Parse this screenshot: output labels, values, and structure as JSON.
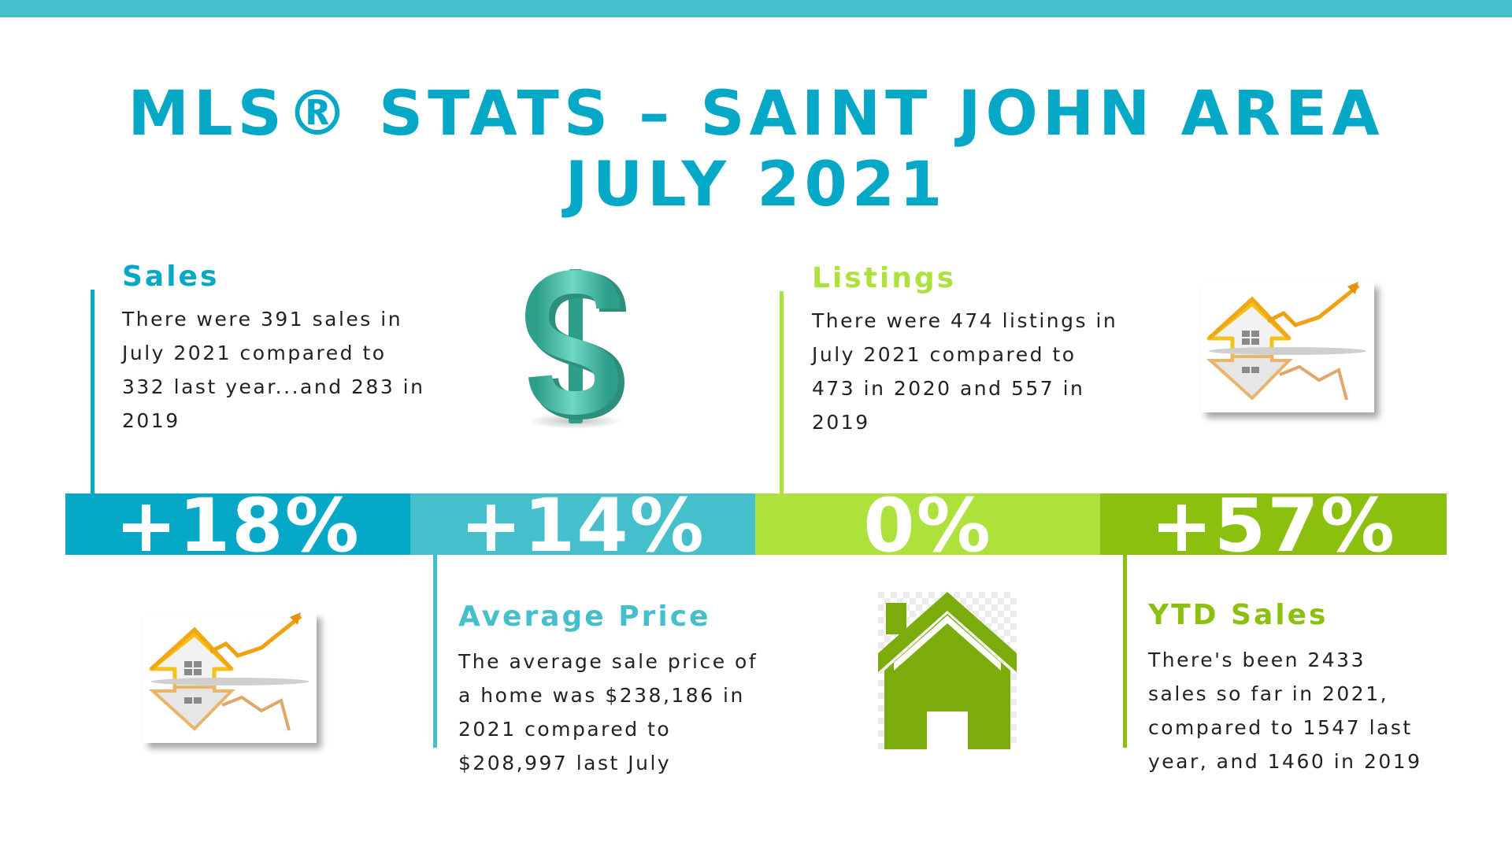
{
  "header": {
    "line1": "MLS® STATS – SAINT JOHN AREA",
    "line2": "JULY  2021"
  },
  "colors": {
    "top_bar": "#44bfcb",
    "title": "#05a8c6",
    "sales": "#05a8c6",
    "average_price": "#44bfcb",
    "listings": "#ade13b",
    "ytd_sales": "#8cc00e",
    "house_green": "#7cac0c",
    "dollar_teal": "#4fc5ad"
  },
  "sections": {
    "sales": {
      "heading": "Sales",
      "lines": [
        "There were 391 sales in",
        "July 2021 compared to",
        "332 last year...and 283 in",
        "2019"
      ]
    },
    "listings": {
      "heading": "Listings",
      "lines": [
        "There were 474 listings in",
        "July 2021 compared to",
        "473 in 2020 and 557 in",
        "2019"
      ]
    },
    "average_price": {
      "heading": "Average Price",
      "lines": [
        "The average sale price of",
        "a home was $238,186 in",
        "2021 compared to",
        "$208,997 last July"
      ]
    },
    "ytd_sales": {
      "heading": "YTD Sales",
      "lines": [
        "There's been 2433",
        "sales so far in 2021,",
        "compared to 1547 last",
        "year, and 1460 in 2019"
      ]
    }
  },
  "band": {
    "sales_pct": "+18%",
    "price_pct": "+14%",
    "listings_pct": "0%",
    "ytd_pct": "+57%"
  },
  "icons": {
    "dollar": "dollar-sign-icon",
    "house_chart": "house-growth-chart-icon",
    "house": "house-icon"
  }
}
